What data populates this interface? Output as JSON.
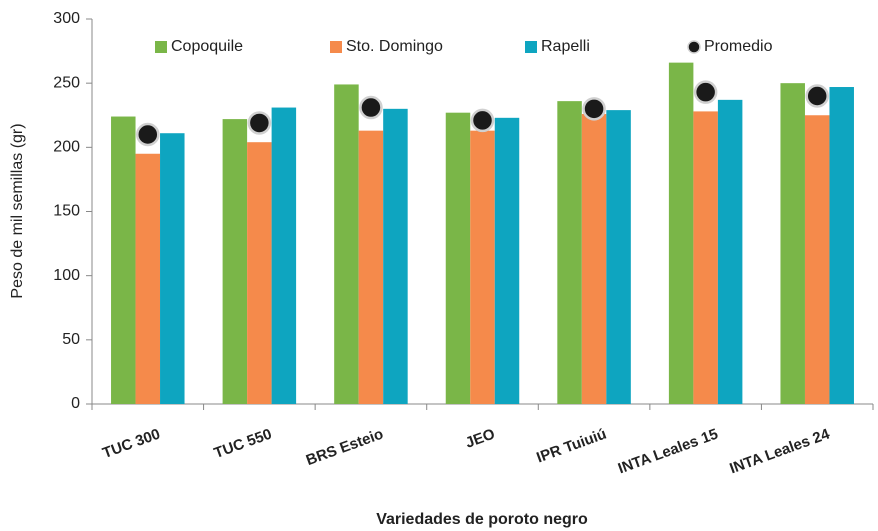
{
  "chart_data": {
    "type": "bar",
    "x_label": "Variedades de poroto negro",
    "y_label": "Peso de mil semillas (gr)",
    "categories": [
      "TUC 300",
      "TUC 550",
      "BRS Esteio",
      "JEO",
      "IPR Tuiuiú",
      "INTA Leales 15",
      "INTA Leales 24"
    ],
    "series": [
      {
        "name": "Copoquile",
        "color": "#7ab648",
        "values": [
          224,
          222,
          249,
          227,
          236,
          266,
          250
        ]
      },
      {
        "name": "Sto. Domingo",
        "color": "#f58a4b",
        "values": [
          195,
          204,
          213,
          213,
          226,
          228,
          225
        ]
      },
      {
        "name": "Rapelli",
        "color": "#0ea5c0",
        "values": [
          211,
          231,
          230,
          223,
          229,
          237,
          247
        ]
      },
      {
        "name": "Promedio",
        "color": "#1a1a1a",
        "type": "marker",
        "values": [
          210,
          219,
          231,
          221,
          230,
          243,
          240
        ]
      }
    ],
    "ylim": [
      0,
      300
    ],
    "yticks": [
      0,
      50,
      100,
      150,
      200,
      250,
      300
    ],
    "legend": "top"
  }
}
